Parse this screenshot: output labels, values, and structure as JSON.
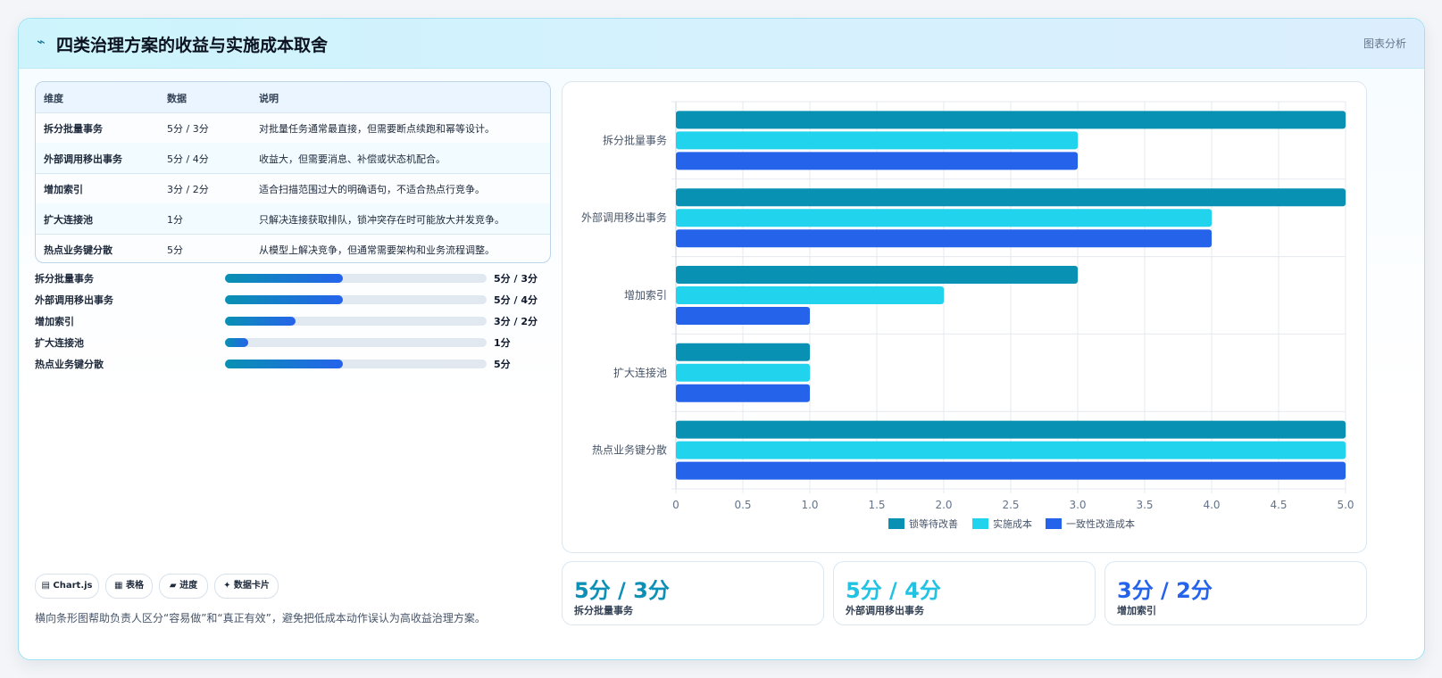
{
  "header": {
    "icon": "bolt-icon",
    "title": "四类治理方案的收益与实施成本取舍",
    "tag": "图表分析"
  },
  "table": {
    "headers": [
      "维度",
      "数据",
      "说明"
    ],
    "rows": [
      {
        "dim": "拆分批量事务",
        "data": "5分 / 3分",
        "desc": "对批量任务通常最直接，但需要断点续跑和幂等设计。"
      },
      {
        "dim": "外部调用移出事务",
        "data": "5分 / 4分",
        "desc": "收益大，但需要消息、补偿或状态机配合。"
      },
      {
        "dim": "增加索引",
        "data": "3分 / 2分",
        "desc": "适合扫描范围过大的明确语句，不适合热点行竞争。"
      },
      {
        "dim": "扩大连接池",
        "data": "1分",
        "desc": "只解决连接获取排队，锁冲突存在时可能放大并发竞争。"
      },
      {
        "dim": "热点业务键分散",
        "data": "5分",
        "desc": "从模型上解决竞争，但通常需要架构和业务流程调整。"
      }
    ]
  },
  "progress": [
    {
      "label": "拆分批量事务",
      "value": "5分 / 3分",
      "fraction": 0.45
    },
    {
      "label": "外部调用移出事务",
      "value": "5分 / 4分",
      "fraction": 0.45
    },
    {
      "label": "增加索引",
      "value": "3分 / 2分",
      "fraction": 0.27
    },
    {
      "label": "扩大连接池",
      "value": "1分",
      "fraction": 0.09
    },
    {
      "label": "热点业务键分散",
      "value": "5分",
      "fraction": 0.45
    }
  ],
  "chips": [
    {
      "icon": "chart-icon",
      "label": "▤ Chart.js"
    },
    {
      "icon": "table-icon",
      "label": "▦ 表格"
    },
    {
      "icon": "progress-icon",
      "label": "▰ 进度"
    },
    {
      "icon": "sparkle-icon",
      "label": "✦ 数据卡片"
    }
  ],
  "footnote": "横向条形图帮助负责人区分“容易做”和“真正有效”，避免把低成本动作误认为高收益治理方案。",
  "stats": [
    {
      "value": "5分 / 3分",
      "label": "拆分批量事务",
      "color": "#0e8fb5"
    },
    {
      "value": "5分 / 4分",
      "label": "外部调用移出事务",
      "color": "#22c2e3"
    },
    {
      "value": "3分 / 2分",
      "label": "增加索引",
      "color": "#2563eb"
    }
  ],
  "chart_data": {
    "type": "bar",
    "orientation": "horizontal",
    "categories": [
      "拆分批量事务",
      "外部调用移出事务",
      "增加索引",
      "扩大连接池",
      "热点业务键分散"
    ],
    "series": [
      {
        "name": "锁等待改善",
        "values": [
          5,
          5,
          3,
          1,
          5
        ],
        "color": "#0891b2"
      },
      {
        "name": "实施成本",
        "values": [
          3,
          4,
          2,
          1,
          5
        ],
        "color": "#22d3ee"
      },
      {
        "name": "一致性改造成本",
        "values": [
          3,
          4,
          1,
          1,
          5
        ],
        "color": "#2563eb"
      }
    ],
    "xlim": [
      0,
      5
    ],
    "xticks": [
      "0",
      "0.5",
      "1.0",
      "1.5",
      "2.0",
      "2.5",
      "3.0",
      "3.5",
      "4.0",
      "4.5",
      "5.0"
    ],
    "grid": true,
    "legend": "bottom"
  }
}
